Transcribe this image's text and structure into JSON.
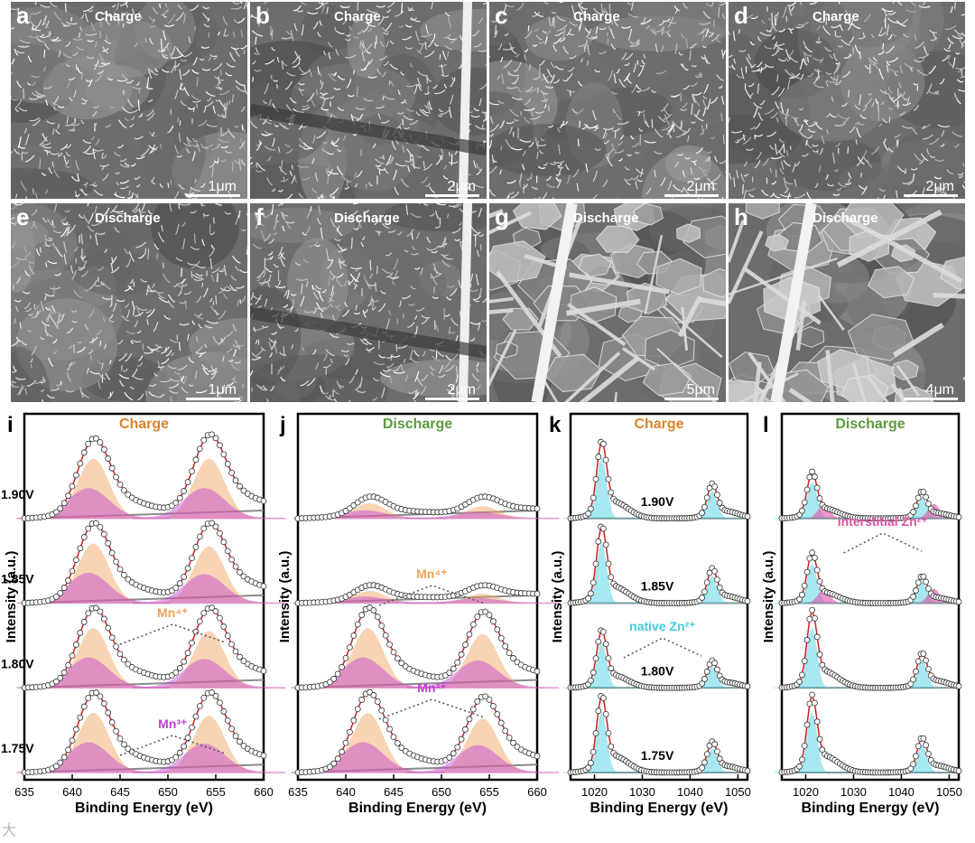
{
  "sem_panels": [
    {
      "letter": "a",
      "state": "Charge",
      "scale": "1μm",
      "theme": "flake"
    },
    {
      "letter": "b",
      "state": "Charge",
      "scale": "2μm",
      "theme": "flake-fiber"
    },
    {
      "letter": "c",
      "state": "Charge",
      "scale": "2μm",
      "theme": "flake"
    },
    {
      "letter": "d",
      "state": "Charge",
      "scale": "2μm",
      "theme": "flake"
    },
    {
      "letter": "e",
      "state": "Discharge",
      "scale": "1μm",
      "theme": "flake"
    },
    {
      "letter": "f",
      "state": "Discharge",
      "scale": "2μm",
      "theme": "flake-fiber"
    },
    {
      "letter": "g",
      "state": "Discharge",
      "scale": "5μm",
      "theme": "plate"
    },
    {
      "letter": "h",
      "state": "Discharge",
      "scale": "4μm",
      "theme": "plate"
    }
  ],
  "chart_data": [
    {
      "letter": "i",
      "type": "line",
      "title": "Charge",
      "title_color": "#d9822b",
      "xlabel": "Binding Energy (eV)",
      "ylabel": "Intensity (a.u.)",
      "xlim": [
        635,
        660
      ],
      "xticks": [
        "635",
        "640",
        "645",
        "650",
        "655",
        "660"
      ],
      "series": [
        {
          "name": "1.90V",
          "peaks": [
            [
              642.2,
              1.0
            ],
            [
              654.3,
              1.0
            ]
          ]
        },
        {
          "name": "1.85V",
          "peaks": [
            [
              642.2,
              1.0
            ],
            [
              654.3,
              0.95
            ]
          ]
        },
        {
          "name": "1.80V",
          "peaks": [
            [
              642.2,
              1.0
            ],
            [
              654.3,
              0.95
            ]
          ]
        },
        {
          "name": "1.75V",
          "peaks": [
            [
              642.2,
              1.0
            ],
            [
              654.3,
              0.95
            ]
          ]
        }
      ],
      "annotations": [
        "Mn⁴⁺",
        "Mn³⁺"
      ]
    },
    {
      "letter": "j",
      "type": "line",
      "title": "Discharge",
      "title_color": "#5a9a3a",
      "xlabel": "Binding Energy (eV)",
      "ylabel": "Intensity (a.u.)",
      "xlim": [
        635,
        660
      ],
      "xticks": [
        "635",
        "640",
        "645",
        "650",
        "655",
        "660"
      ],
      "series": [
        {
          "name": "",
          "peaks": [
            [
              642.5,
              0.25
            ],
            [
              654.3,
              0.2
            ]
          ]
        },
        {
          "name": "",
          "peaks": [
            [
              642.5,
              0.2
            ],
            [
              654.3,
              0.15
            ]
          ]
        },
        {
          "name": "",
          "peaks": [
            [
              642.3,
              1.0
            ],
            [
              654.3,
              0.9
            ]
          ]
        },
        {
          "name": "",
          "peaks": [
            [
              642.3,
              1.0
            ],
            [
              654.3,
              0.9
            ]
          ]
        }
      ],
      "annotations": [
        "Mn⁴⁺",
        "Mn³⁺"
      ]
    },
    {
      "letter": "k",
      "type": "line",
      "title": "Charge",
      "title_color": "#d9822b",
      "xlabel": "Binding Energy (eV)",
      "ylabel": "Intensity (a.u.)",
      "xlim": [
        1015,
        1052
      ],
      "xticks": [
        "1020",
        "1030",
        "1040",
        "1050"
      ],
      "series": [
        {
          "name": "1.90V",
          "peaks": [
            [
              1021.5,
              1.0
            ],
            [
              1044.6,
              0.45
            ]
          ]
        },
        {
          "name": "1.85V",
          "peaks": [
            [
              1021.5,
              1.0
            ],
            [
              1044.6,
              0.45
            ]
          ]
        },
        {
          "name": "1.80V",
          "peaks": [
            [
              1021.5,
              0.75
            ],
            [
              1044.6,
              0.35
            ]
          ]
        },
        {
          "name": "1.75V",
          "peaks": [
            [
              1021.5,
              1.0
            ],
            [
              1044.6,
              0.4
            ]
          ]
        }
      ],
      "annotations": [
        "native Zn²⁺"
      ]
    },
    {
      "letter": "l",
      "type": "line",
      "title": "Discharge",
      "title_color": "#5a9a3a",
      "xlabel": "Binding Energy (eV)",
      "ylabel": "Intensity (a.u.)",
      "xlim": [
        1015,
        1052
      ],
      "xticks": [
        "1020",
        "1030",
        "1040",
        "1050"
      ],
      "series": [
        {
          "name": "",
          "peaks": [
            [
              1021.3,
              0.6
            ],
            [
              1044.3,
              0.35
            ]
          ]
        },
        {
          "name": "",
          "peaks": [
            [
              1021.3,
              0.65
            ],
            [
              1044.3,
              0.35
            ]
          ]
        },
        {
          "name": "",
          "peaks": [
            [
              1021.3,
              1.0
            ],
            [
              1044.3,
              0.45
            ]
          ]
        },
        {
          "name": "",
          "peaks": [
            [
              1021.3,
              1.0
            ],
            [
              1044.3,
              0.45
            ]
          ]
        }
      ],
      "annotations": [
        "interstitial Zn²⁺"
      ]
    }
  ],
  "colors": {
    "mn4": "#f0a15a",
    "mn3": "#c23fd3",
    "zn_native": "#3fcde0",
    "zn_inter": "#e04fa8",
    "baseline": "#8a8a8a",
    "fit": "#d11f1f"
  },
  "watermark": "大"
}
